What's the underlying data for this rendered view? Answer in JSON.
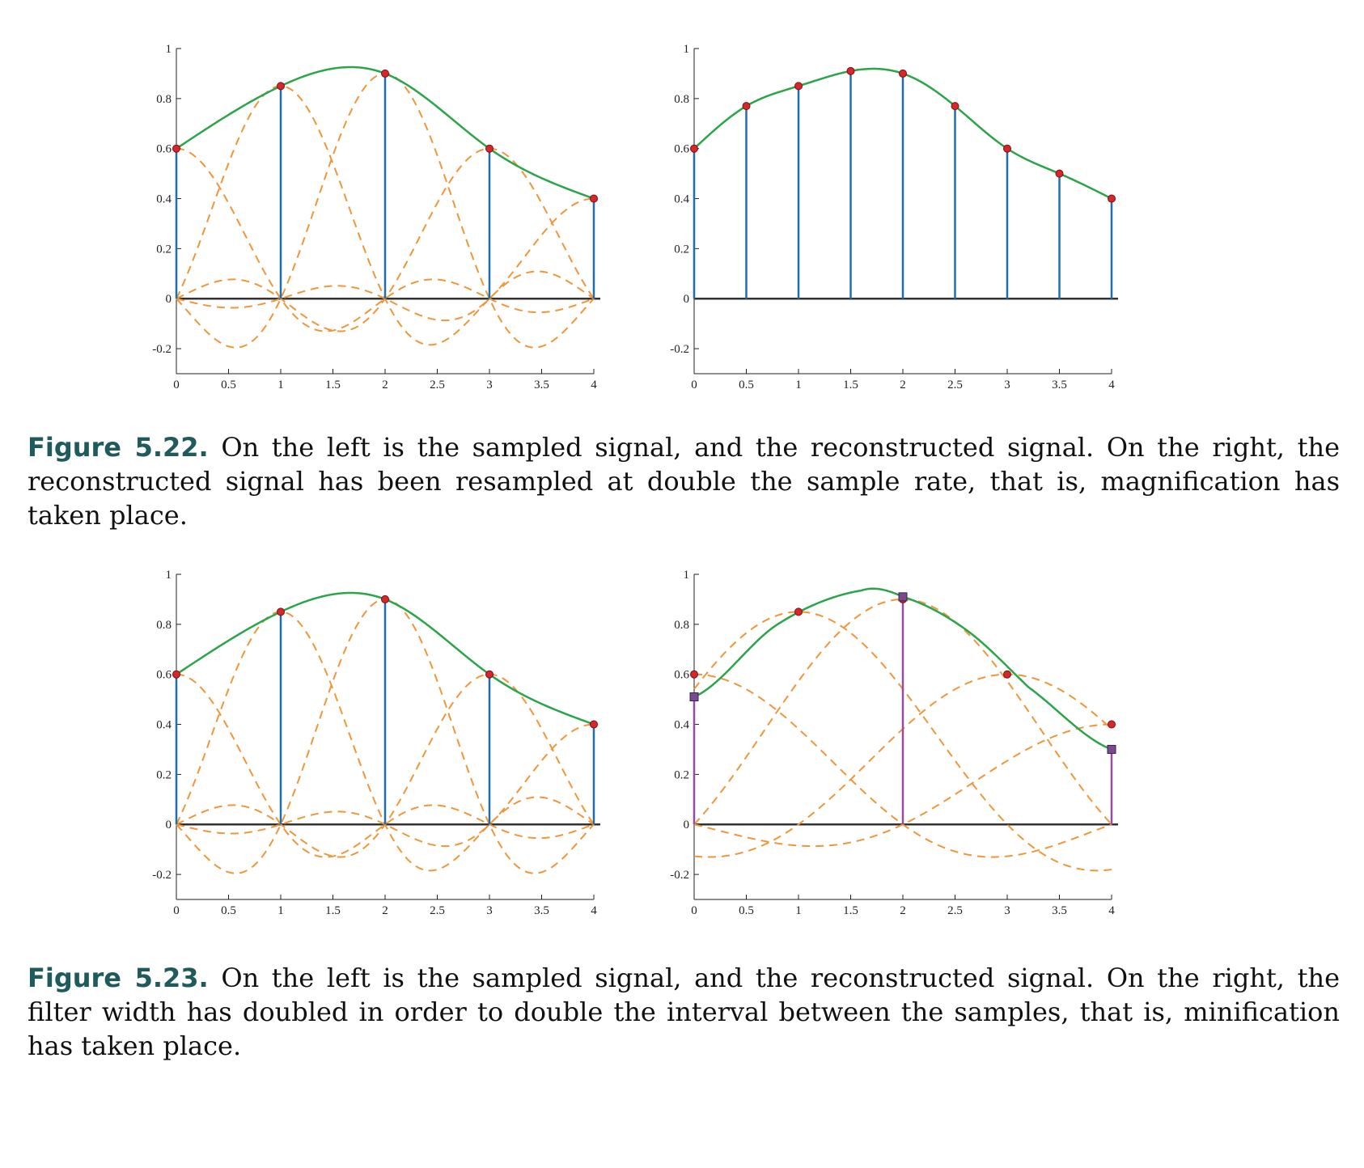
{
  "colors": {
    "reconstruction": "#2aa54a",
    "stem": "#1f6fae",
    "kernel": "#f0963a",
    "sample_dot": "#d8262b",
    "resample_marker": "#7a4a8f",
    "resample_stem": "#9a4aa3",
    "axis": "#222222",
    "caption_label": "#1f5a5c"
  },
  "captions": {
    "fig_22": {
      "label": "Figure 5.22.",
      "text": "On the left is the sampled signal, and the reconstructed signal. On the right, the reconstructed signal has been resampled at double the sample rate, that is, magnification has taken place."
    },
    "fig_23": {
      "label": "Figure 5.23.",
      "text": "On the left is the sampled signal, and the reconstructed signal. On the right, the filter width has doubled in order to double the interval between the samples, that is, minification has taken place."
    }
  },
  "chart_data": [
    {
      "type": "line",
      "title": "",
      "xlim": [
        0,
        4
      ],
      "ylim": [
        -0.3,
        1
      ],
      "xticks": [
        "0",
        "0.5",
        "1",
        "1.5",
        "2",
        "2.5",
        "3",
        "3.5",
        "4"
      ],
      "yticks": [
        "-0.2",
        "0",
        "0.2",
        "0.4",
        "0.6",
        "0.8",
        "1"
      ],
      "samples": {
        "x": [
          0,
          1,
          2,
          3,
          4
        ],
        "y": [
          0.6,
          0.85,
          0.9,
          0.6,
          0.4
        ]
      },
      "kernel_width": 1,
      "show_kernels": true,
      "show_reconstruction": true
    },
    {
      "type": "line",
      "title": "",
      "xlim": [
        0,
        4
      ],
      "ylim": [
        -0.3,
        1
      ],
      "xticks": [
        "0",
        "0.5",
        "1",
        "1.5",
        "2",
        "2.5",
        "3",
        "3.5",
        "4"
      ],
      "yticks": [
        "-0.2",
        "0",
        "0.2",
        "0.4",
        "0.6",
        "0.8",
        "1"
      ],
      "samples": {
        "x": [
          0,
          0.5,
          1,
          1.5,
          2,
          2.5,
          3,
          3.5,
          4
        ],
        "y": [
          0.6,
          0.77,
          0.85,
          0.91,
          0.9,
          0.77,
          0.6,
          0.5,
          0.4
        ]
      },
      "kernel_width": 1,
      "show_kernels": false,
      "show_reconstruction": true
    },
    {
      "type": "line",
      "title": "",
      "xlim": [
        0,
        4
      ],
      "ylim": [
        -0.3,
        1
      ],
      "xticks": [
        "0",
        "0.5",
        "1",
        "1.5",
        "2",
        "2.5",
        "3",
        "3.5",
        "4"
      ],
      "yticks": [
        "-0.2",
        "0",
        "0.2",
        "0.4",
        "0.6",
        "0.8",
        "1"
      ],
      "samples": {
        "x": [
          0,
          1,
          2,
          3,
          4
        ],
        "y": [
          0.6,
          0.85,
          0.9,
          0.6,
          0.4
        ]
      },
      "kernel_width": 1,
      "show_kernels": true,
      "show_reconstruction": true
    },
    {
      "type": "line",
      "title": "",
      "xlim": [
        0,
        4
      ],
      "ylim": [
        -0.3,
        1
      ],
      "xticks": [
        "0",
        "0.5",
        "1",
        "1.5",
        "2",
        "2.5",
        "3",
        "3.5",
        "4"
      ],
      "yticks": [
        "-0.2",
        "0",
        "0.2",
        "0.4",
        "0.6",
        "0.8",
        "1"
      ],
      "samples": {
        "x": [
          0,
          1,
          2,
          3,
          4
        ],
        "y": [
          0.6,
          0.85,
          0.9,
          0.6,
          0.4
        ]
      },
      "kernel_width": 2,
      "show_kernels": true,
      "show_reconstruction": true,
      "resamples": {
        "x": [
          0,
          2,
          4
        ],
        "y": [
          0.51,
          0.91,
          0.3
        ]
      }
    }
  ]
}
